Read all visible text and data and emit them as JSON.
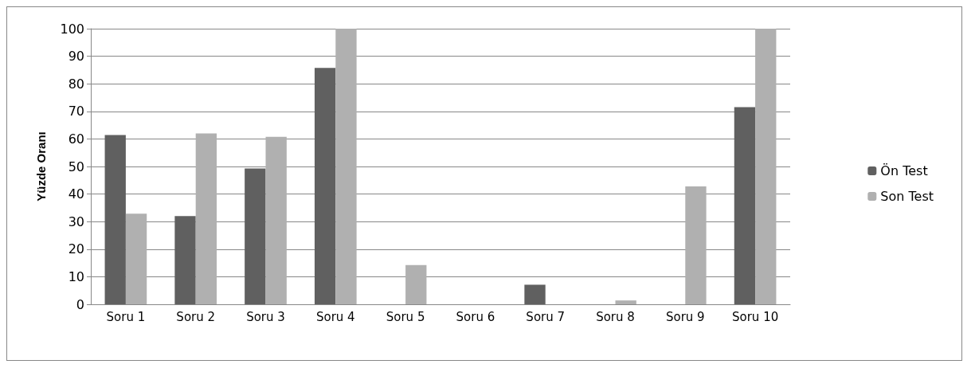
{
  "chart_data": {
    "type": "bar",
    "ylabel": "Yüzde Oranı",
    "categories": [
      "Soru 1",
      "Soru 2",
      "Soru 3",
      "Soru 4",
      "Soru 5",
      "Soru 6",
      "Soru 7",
      "Soru 8",
      "Soru 9",
      "Soru 10"
    ],
    "series": [
      {
        "name": "Ön Test",
        "color": "#606060",
        "values": [
          61.4,
          32,
          49.3,
          85.8,
          0,
          0,
          7.1,
          0,
          0,
          71.5
        ]
      },
      {
        "name": "Son Test",
        "color": "#b0b0b0",
        "values": [
          32.9,
          62,
          60.8,
          100,
          14.2,
          0,
          0,
          1.4,
          42.8,
          100
        ]
      }
    ],
    "ylim": [
      0,
      100
    ],
    "yticks": [
      0,
      10,
      20,
      30,
      40,
      50,
      60,
      70,
      80,
      90,
      100
    ],
    "grid": "y",
    "legend": "right"
  }
}
